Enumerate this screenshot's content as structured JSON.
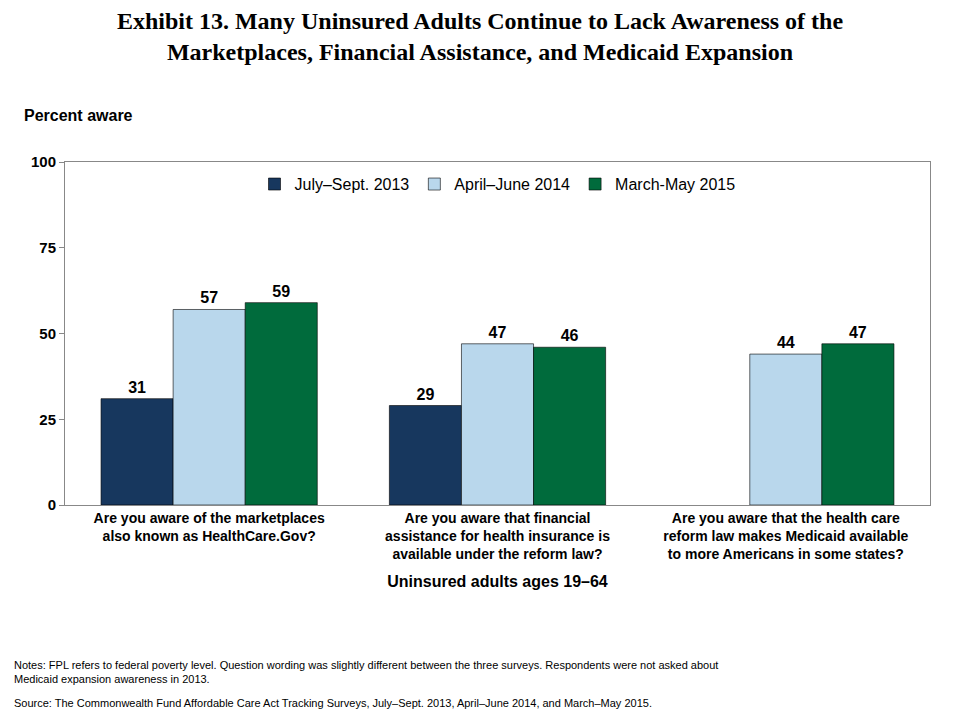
{
  "chart_data": {
    "type": "bar",
    "title": "Exhibit 13. Many Uninsured Adults Continue to Lack Awareness of the Marketplaces, Financial Assistance, and Medicaid Expansion",
    "ylabel": "Percent aware",
    "xlabel": "Uninsured adults ages 19–64",
    "categories": [
      "Are you aware of the marketplaces also known as HealthCare.Gov?",
      "Are you aware that financial assistance for health insurance is available under the reform law?",
      "Are you aware that the health care reform law makes Medicaid available to more Americans in some states?"
    ],
    "series": [
      {
        "name": "July–Sept. 2013",
        "color": "#17375e",
        "values": [
          31,
          29,
          null
        ]
      },
      {
        "name": "April–June 2014",
        "color": "#b9d7ec",
        "values": [
          57,
          47,
          44
        ]
      },
      {
        "name": "March-May 2015",
        "color": "#006b3c",
        "values": [
          59,
          46,
          47
        ]
      }
    ],
    "ylim": [
      0,
      100
    ],
    "yticks": [
      0,
      25,
      50,
      75,
      100
    ],
    "grid": false,
    "legend": "top",
    "data_labels": true,
    "annotations": [
      "Notes: FPL refers to federal poverty level. Question wording was slightly different between the three surveys. Respondents were not asked about Medicaid expansion awareness in 2013.",
      "Source: The Commonwealth Fund Affordable Care Act Tracking Surveys, July–Sept. 2013, April–June 2014, and March–May 2015."
    ]
  }
}
